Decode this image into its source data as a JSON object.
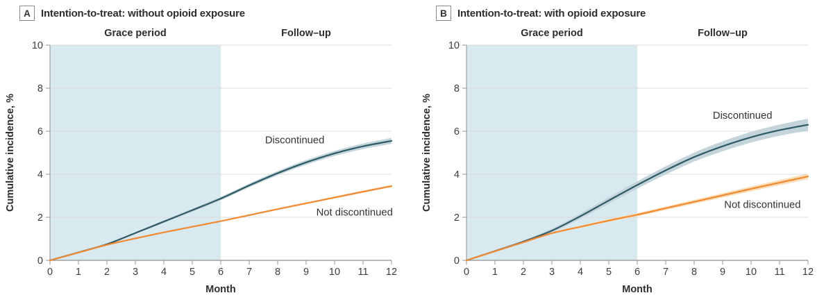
{
  "colors": {
    "background": "#FFFFFF",
    "grace_fill": "#D9E9F0",
    "grid": "#DADADA",
    "axis": "#919191",
    "tick_text": "#3D3D3D",
    "title_text": "#2E2E2E"
  },
  "chart_data": [
    {
      "type": "line",
      "panel_letter": "A",
      "title": "Intention-to-treat: without opioid exposure",
      "xlabel": "Month",
      "ylabel": "Cumulative incidence, %",
      "xlim": [
        0,
        12
      ],
      "ylim": [
        0,
        10
      ],
      "xticks": [
        0,
        1,
        2,
        3,
        4,
        5,
        6,
        7,
        8,
        9,
        10,
        11,
        12
      ],
      "yticks": [
        0,
        2,
        4,
        6,
        8,
        10
      ],
      "grid": true,
      "legend_position": "inline-labels",
      "grace_period": {
        "label": "Grace period",
        "x_range": [
          0,
          6
        ],
        "label_x": 3
      },
      "followup": {
        "label": "Follow–up",
        "label_x": 9
      },
      "x": [
        0,
        1,
        2,
        3,
        4,
        5,
        6,
        7,
        8,
        9,
        10,
        11,
        12
      ],
      "series": [
        {
          "name": "Discontinued",
          "line_color": "#2E5A66",
          "band_color": "#C3D5DB",
          "values": [
            0,
            0.37,
            0.75,
            1.27,
            1.8,
            2.33,
            2.87,
            3.48,
            4.05,
            4.55,
            4.97,
            5.3,
            5.55
          ],
          "ci_halfwidth": [
            0.02,
            0.03,
            0.04,
            0.05,
            0.06,
            0.07,
            0.08,
            0.09,
            0.1,
            0.11,
            0.12,
            0.13,
            0.14
          ],
          "label_x": 8.6,
          "label_y": 5.6
        },
        {
          "name": "Not discontinued",
          "line_color": "#F18A30",
          "band_color": "#FADDB6",
          "values": [
            0,
            0.36,
            0.72,
            1.02,
            1.3,
            1.56,
            1.82,
            2.1,
            2.38,
            2.65,
            2.92,
            3.19,
            3.45
          ],
          "ci_halfwidth": [
            0.01,
            0.015,
            0.02,
            0.02,
            0.025,
            0.03,
            0.03,
            0.035,
            0.04,
            0.04,
            0.045,
            0.05,
            0.05
          ],
          "label_x": 10.7,
          "label_y": 2.25
        }
      ]
    },
    {
      "type": "line",
      "panel_letter": "B",
      "title": "Intention-to-treat: with opioid exposure",
      "xlabel": "Month",
      "ylabel": "Cumulative incidence, %",
      "xlim": [
        0,
        12
      ],
      "ylim": [
        0,
        10
      ],
      "xticks": [
        0,
        1,
        2,
        3,
        4,
        5,
        6,
        7,
        8,
        9,
        10,
        11,
        12
      ],
      "yticks": [
        0,
        2,
        4,
        6,
        8,
        10
      ],
      "grid": true,
      "legend_position": "inline-labels",
      "grace_period": {
        "label": "Grace period",
        "x_range": [
          0,
          6
        ],
        "label_x": 3
      },
      "followup": {
        "label": "Follow–up",
        "label_x": 9
      },
      "x": [
        0,
        1,
        2,
        3,
        4,
        5,
        6,
        7,
        8,
        9,
        10,
        11,
        12
      ],
      "series": [
        {
          "name": "Discontinued",
          "line_color": "#2E5A66",
          "band_color": "#C3D5DB",
          "values": [
            0,
            0.43,
            0.87,
            1.38,
            2.05,
            2.78,
            3.5,
            4.18,
            4.8,
            5.3,
            5.72,
            6.05,
            6.3
          ],
          "ci_halfwidth": [
            0.02,
            0.04,
            0.06,
            0.09,
            0.12,
            0.15,
            0.17,
            0.19,
            0.21,
            0.23,
            0.25,
            0.26,
            0.28
          ],
          "label_x": 9.7,
          "label_y": 6.75
        },
        {
          "name": "Not discontinued",
          "line_color": "#F18A30",
          "band_color": "#FADDB6",
          "values": [
            0,
            0.42,
            0.84,
            1.26,
            1.56,
            1.85,
            2.12,
            2.42,
            2.72,
            3.02,
            3.32,
            3.61,
            3.9
          ],
          "ci_halfwidth": [
            0.01,
            0.02,
            0.03,
            0.04,
            0.05,
            0.06,
            0.07,
            0.08,
            0.09,
            0.1,
            0.11,
            0.12,
            0.13
          ],
          "label_x": 10.4,
          "label_y": 2.6
        }
      ]
    }
  ]
}
